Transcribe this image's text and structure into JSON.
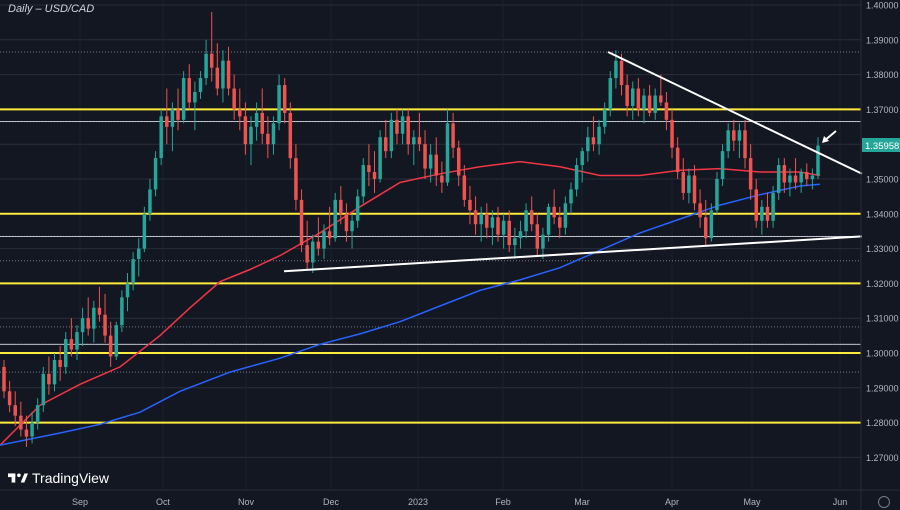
{
  "header": {
    "title": "Daily – USD/CAD"
  },
  "branding": {
    "logo_text": "TradingView"
  },
  "colors": {
    "background": "#131722",
    "grid": "#2a2e39",
    "bull": "#26a69a",
    "bear": "#ef5350",
    "ma_red": "#f23645",
    "ma_blue": "#2962ff",
    "support_resistance": "#ffeb3b",
    "trendline": "#ffffff",
    "dotted_levels": "#787b86",
    "price_label_bg": "#26a69a"
  },
  "chart_data": {
    "type": "candlestick",
    "title": "Daily – USD/CAD",
    "ylim": [
      1.265,
      1.4
    ],
    "y_tick_labels": [
      "1.40000",
      "1.39000",
      "1.38000",
      "1.37000",
      "1.36000",
      "1.35000",
      "1.34000",
      "1.33000",
      "1.32000",
      "1.31000",
      "1.30000",
      "1.29000",
      "1.28000",
      "1.27000"
    ],
    "x_tick_labels": [
      "Sep",
      "Oct",
      "Nov",
      "Dec",
      "2023",
      "Feb",
      "Mar",
      "Apr",
      "May",
      "Jun"
    ],
    "highlighted_levels": [
      1.37,
      1.34,
      1.32,
      1.3,
      1.28
    ],
    "dotted_levels": [
      1.3865,
      1.3665,
      1.3335,
      1.3265,
      1.3075,
      1.3025,
      1.2945
    ],
    "last_price": "1.35958",
    "moving_averages": [
      {
        "color": "#f23645",
        "points": [
          [
            0,
            1.2735
          ],
          [
            40,
            1.285
          ],
          [
            80,
            1.291
          ],
          [
            120,
            1.296
          ],
          [
            160,
            1.305
          ],
          [
            190,
            1.313
          ],
          [
            220,
            1.3205
          ],
          [
            250,
            1.324
          ],
          [
            280,
            1.328
          ],
          [
            320,
            1.3345
          ],
          [
            360,
            1.342
          ],
          [
            400,
            1.349
          ],
          [
            440,
            1.3515
          ],
          [
            480,
            1.3535
          ],
          [
            520,
            1.355
          ],
          [
            560,
            1.3535
          ],
          [
            600,
            1.351
          ],
          [
            640,
            1.351
          ],
          [
            680,
            1.3525
          ],
          [
            720,
            1.353
          ],
          [
            760,
            1.352
          ],
          [
            800,
            1.352
          ],
          [
            820,
            1.351
          ]
        ]
      },
      {
        "color": "#2962ff",
        "points": [
          [
            0,
            1.2735
          ],
          [
            60,
            1.277
          ],
          [
            100,
            1.2795
          ],
          [
            140,
            1.283
          ],
          [
            180,
            1.289
          ],
          [
            230,
            1.2945
          ],
          [
            280,
            1.2985
          ],
          [
            320,
            1.3025
          ],
          [
            360,
            1.3055
          ],
          [
            400,
            1.309
          ],
          [
            440,
            1.3135
          ],
          [
            480,
            1.318
          ],
          [
            520,
            1.321
          ],
          [
            560,
            1.3245
          ],
          [
            600,
            1.3295
          ],
          [
            640,
            1.3345
          ],
          [
            680,
            1.3385
          ],
          [
            720,
            1.3425
          ],
          [
            760,
            1.3455
          ],
          [
            800,
            1.348
          ],
          [
            820,
            1.3485
          ]
        ]
      }
    ],
    "trendlines": [
      {
        "from": [
          608,
          1.3865
        ],
        "to": [
          862,
          1.3515
        ]
      },
      {
        "from": [
          284,
          1.3235
        ],
        "to": [
          862,
          1.3335
        ]
      }
    ],
    "candles_ohlc": [
      [
        1.296,
        1.298,
        1.287,
        1.289
      ],
      [
        1.289,
        1.292,
        1.283,
        1.285
      ],
      [
        1.285,
        1.289,
        1.279,
        1.282
      ],
      [
        1.282,
        1.286,
        1.276,
        1.278
      ],
      [
        1.278,
        1.282,
        1.273,
        1.276
      ],
      [
        1.276,
        1.283,
        1.274,
        1.28
      ],
      [
        1.28,
        1.287,
        1.278,
        1.285
      ],
      [
        1.285,
        1.296,
        1.283,
        1.294
      ],
      [
        1.294,
        1.299,
        1.288,
        1.291
      ],
      [
        1.291,
        1.3,
        1.289,
        1.298
      ],
      [
        1.298,
        1.302,
        1.292,
        1.296
      ],
      [
        1.296,
        1.306,
        1.294,
        1.304
      ],
      [
        1.304,
        1.31,
        1.299,
        1.301
      ],
      [
        1.301,
        1.308,
        1.298,
        1.306
      ],
      [
        1.306,
        1.313,
        1.302,
        1.31
      ],
      [
        1.31,
        1.316,
        1.305,
        1.307
      ],
      [
        1.307,
        1.315,
        1.303,
        1.313
      ],
      [
        1.313,
        1.319,
        1.309,
        1.311
      ],
      [
        1.311,
        1.317,
        1.303,
        1.305
      ],
      [
        1.305,
        1.309,
        1.296,
        1.299
      ],
      [
        1.299,
        1.309,
        1.298,
        1.308
      ],
      [
        1.308,
        1.318,
        1.306,
        1.316
      ],
      [
        1.316,
        1.323,
        1.312,
        1.32
      ],
      [
        1.32,
        1.329,
        1.318,
        1.327
      ],
      [
        1.327,
        1.333,
        1.322,
        1.33
      ],
      [
        1.33,
        1.342,
        1.329,
        1.34
      ],
      [
        1.34,
        1.35,
        1.338,
        1.347
      ],
      [
        1.347,
        1.358,
        1.345,
        1.356
      ],
      [
        1.356,
        1.37,
        1.354,
        1.368
      ],
      [
        1.368,
        1.376,
        1.36,
        1.365
      ],
      [
        1.365,
        1.372,
        1.358,
        1.37
      ],
      [
        1.37,
        1.376,
        1.364,
        1.367
      ],
      [
        1.367,
        1.381,
        1.366,
        1.379
      ],
      [
        1.379,
        1.383,
        1.37,
        1.372
      ],
      [
        1.372,
        1.378,
        1.364,
        1.375
      ],
      [
        1.375,
        1.381,
        1.373,
        1.379
      ],
      [
        1.379,
        1.39,
        1.377,
        1.386
      ],
      [
        1.386,
        1.398,
        1.378,
        1.382
      ],
      [
        1.382,
        1.389,
        1.374,
        1.376
      ],
      [
        1.376,
        1.387,
        1.372,
        1.384
      ],
      [
        1.384,
        1.388,
        1.374,
        1.376
      ],
      [
        1.376,
        1.38,
        1.367,
        1.37
      ],
      [
        1.37,
        1.376,
        1.364,
        1.368
      ],
      [
        1.368,
        1.372,
        1.357,
        1.36
      ],
      [
        1.36,
        1.368,
        1.354,
        1.365
      ],
      [
        1.365,
        1.372,
        1.361,
        1.369
      ],
      [
        1.369,
        1.376,
        1.36,
        1.363
      ],
      [
        1.363,
        1.368,
        1.356,
        1.36
      ],
      [
        1.36,
        1.368,
        1.357,
        1.366
      ],
      [
        1.366,
        1.38,
        1.364,
        1.377
      ],
      [
        1.377,
        1.379,
        1.366,
        1.369
      ],
      [
        1.369,
        1.372,
        1.353,
        1.356
      ],
      [
        1.356,
        1.36,
        1.341,
        1.344
      ],
      [
        1.344,
        1.347,
        1.329,
        1.331
      ],
      [
        1.331,
        1.338,
        1.324,
        1.326
      ],
      [
        1.326,
        1.334,
        1.323,
        1.332
      ],
      [
        1.332,
        1.339,
        1.328,
        1.33
      ],
      [
        1.33,
        1.337,
        1.327,
        1.335
      ],
      [
        1.335,
        1.342,
        1.331,
        1.333
      ],
      [
        1.333,
        1.346,
        1.332,
        1.344
      ],
      [
        1.344,
        1.348,
        1.337,
        1.34
      ],
      [
        1.34,
        1.343,
        1.332,
        1.335
      ],
      [
        1.335,
        1.34,
        1.33,
        1.338
      ],
      [
        1.338,
        1.347,
        1.336,
        1.345
      ],
      [
        1.345,
        1.356,
        1.343,
        1.354
      ],
      [
        1.354,
        1.36,
        1.348,
        1.352
      ],
      [
        1.352,
        1.358,
        1.346,
        1.35
      ],
      [
        1.35,
        1.364,
        1.349,
        1.362
      ],
      [
        1.362,
        1.367,
        1.356,
        1.358
      ],
      [
        1.358,
        1.369,
        1.356,
        1.367
      ],
      [
        1.367,
        1.37,
        1.36,
        1.363
      ],
      [
        1.363,
        1.37,
        1.36,
        1.368
      ],
      [
        1.368,
        1.37,
        1.357,
        1.36
      ],
      [
        1.36,
        1.364,
        1.354,
        1.362
      ],
      [
        1.362,
        1.369,
        1.358,
        1.36
      ],
      [
        1.36,
        1.364,
        1.35,
        1.353
      ],
      [
        1.353,
        1.36,
        1.349,
        1.357
      ],
      [
        1.357,
        1.362,
        1.348,
        1.351
      ],
      [
        1.351,
        1.355,
        1.346,
        1.349
      ],
      [
        1.349,
        1.37,
        1.348,
        1.366
      ],
      [
        1.366,
        1.369,
        1.356,
        1.359
      ],
      [
        1.359,
        1.361,
        1.348,
        1.351
      ],
      [
        1.351,
        1.354,
        1.342,
        1.344
      ],
      [
        1.344,
        1.348,
        1.337,
        1.341
      ],
      [
        1.341,
        1.345,
        1.334,
        1.337
      ],
      [
        1.337,
        1.342,
        1.332,
        1.34
      ],
      [
        1.34,
        1.343,
        1.333,
        1.336
      ],
      [
        1.336,
        1.341,
        1.331,
        1.339
      ],
      [
        1.339,
        1.342,
        1.332,
        1.334
      ],
      [
        1.334,
        1.34,
        1.33,
        1.338
      ],
      [
        1.338,
        1.341,
        1.329,
        1.331
      ],
      [
        1.331,
        1.336,
        1.327,
        1.333
      ],
      [
        1.333,
        1.338,
        1.33,
        1.335
      ],
      [
        1.335,
        1.343,
        1.333,
        1.341
      ],
      [
        1.341,
        1.345,
        1.335,
        1.337
      ],
      [
        1.337,
        1.34,
        1.328,
        1.33
      ],
      [
        1.33,
        1.336,
        1.327,
        1.334
      ],
      [
        1.334,
        1.343,
        1.332,
        1.342
      ],
      [
        1.342,
        1.347,
        1.337,
        1.339
      ],
      [
        1.339,
        1.342,
        1.333,
        1.336
      ],
      [
        1.336,
        1.345,
        1.334,
        1.343
      ],
      [
        1.343,
        1.349,
        1.34,
        1.347
      ],
      [
        1.347,
        1.356,
        1.345,
        1.354
      ],
      [
        1.354,
        1.359,
        1.349,
        1.358
      ],
      [
        1.358,
        1.365,
        1.355,
        1.362
      ],
      [
        1.362,
        1.368,
        1.358,
        1.36
      ],
      [
        1.36,
        1.367,
        1.357,
        1.365
      ],
      [
        1.365,
        1.372,
        1.363,
        1.37
      ],
      [
        1.37,
        1.381,
        1.368,
        1.379
      ],
      [
        1.379,
        1.387,
        1.376,
        1.384
      ],
      [
        1.384,
        1.386,
        1.374,
        1.377
      ],
      [
        1.377,
        1.38,
        1.368,
        1.371
      ],
      [
        1.371,
        1.378,
        1.367,
        1.376
      ],
      [
        1.376,
        1.379,
        1.368,
        1.37
      ],
      [
        1.37,
        1.376,
        1.366,
        1.374
      ],
      [
        1.374,
        1.377,
        1.368,
        1.369
      ],
      [
        1.369,
        1.376,
        1.367,
        1.374
      ],
      [
        1.374,
        1.38,
        1.371,
        1.372
      ],
      [
        1.372,
        1.375,
        1.364,
        1.367
      ],
      [
        1.367,
        1.37,
        1.356,
        1.359
      ],
      [
        1.359,
        1.362,
        1.35,
        1.352
      ],
      [
        1.352,
        1.356,
        1.344,
        1.346
      ],
      [
        1.346,
        1.353,
        1.343,
        1.351
      ],
      [
        1.351,
        1.354,
        1.341,
        1.343
      ],
      [
        1.343,
        1.347,
        1.336,
        1.339
      ],
      [
        1.339,
        1.344,
        1.331,
        1.333
      ],
      [
        1.333,
        1.343,
        1.332,
        1.341
      ],
      [
        1.341,
        1.352,
        1.34,
        1.35
      ],
      [
        1.35,
        1.36,
        1.348,
        1.358
      ],
      [
        1.358,
        1.366,
        1.356,
        1.364
      ],
      [
        1.364,
        1.367,
        1.358,
        1.361
      ],
      [
        1.361,
        1.366,
        1.356,
        1.364
      ],
      [
        1.364,
        1.367,
        1.353,
        1.356
      ],
      [
        1.356,
        1.36,
        1.344,
        1.347
      ],
      [
        1.347,
        1.35,
        1.336,
        1.338
      ],
      [
        1.338,
        1.344,
        1.334,
        1.342
      ],
      [
        1.342,
        1.346,
        1.336,
        1.338
      ],
      [
        1.338,
        1.348,
        1.336,
        1.346
      ],
      [
        1.346,
        1.356,
        1.344,
        1.354
      ],
      [
        1.354,
        1.356,
        1.346,
        1.349
      ],
      [
        1.349,
        1.353,
        1.345,
        1.351
      ],
      [
        1.351,
        1.356,
        1.347,
        1.349
      ],
      [
        1.349,
        1.353,
        1.346,
        1.352
      ],
      [
        1.352,
        1.3545,
        1.348,
        1.35
      ],
      [
        1.35,
        1.353,
        1.347,
        1.351
      ],
      [
        1.351,
        1.362,
        1.35,
        1.3596
      ]
    ]
  }
}
